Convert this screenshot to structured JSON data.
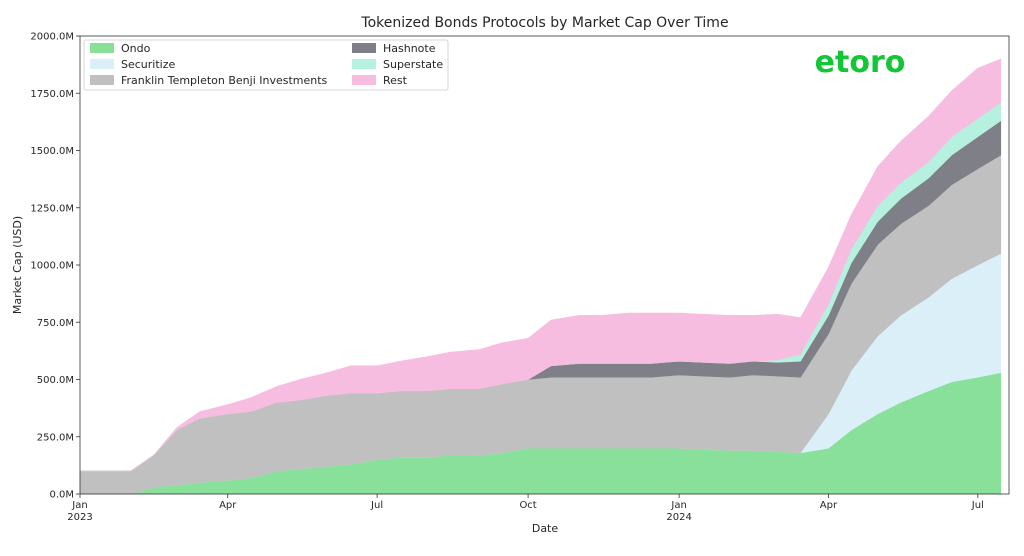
{
  "brand": {
    "logo_text": "etoro",
    "color": "#13c636"
  },
  "chart_data": {
    "type": "area",
    "stacked": true,
    "title": "Tokenized Bonds Protocols by Market Cap Over Time",
    "xlabel": "Date",
    "ylabel": "Market Cap (USD)",
    "ylim": [
      0,
      2000
    ],
    "yticks": [
      0,
      250,
      500,
      750,
      1000,
      1250,
      1500,
      1750,
      2000
    ],
    "ytick_labels": [
      "0.0M",
      "250.0M",
      "500.0M",
      "750.0M",
      "1000.0M",
      "1250.0M",
      "1500.0M",
      "1750.0M",
      "2000.0M"
    ],
    "xlim": [
      "2023-01-01",
      "2024-07-20"
    ],
    "xticks": [
      {
        "date": "2023-01-01",
        "label": "Jan",
        "sub": "2023"
      },
      {
        "date": "2023-04-01",
        "label": "Apr",
        "sub": ""
      },
      {
        "date": "2023-07-01",
        "label": "Jul",
        "sub": ""
      },
      {
        "date": "2023-10-01",
        "label": "Oct",
        "sub": ""
      },
      {
        "date": "2024-01-01",
        "label": "Jan",
        "sub": "2024"
      },
      {
        "date": "2024-04-01",
        "label": "Apr",
        "sub": ""
      },
      {
        "date": "2024-07-01",
        "label": "Jul",
        "sub": ""
      }
    ],
    "grid": false,
    "legend_position": "top-left",
    "x": [
      "2023-01-01",
      "2023-01-15",
      "2023-02-01",
      "2023-02-15",
      "2023-03-01",
      "2023-03-15",
      "2023-04-01",
      "2023-04-15",
      "2023-05-01",
      "2023-05-15",
      "2023-06-01",
      "2023-06-15",
      "2023-07-01",
      "2023-07-15",
      "2023-08-01",
      "2023-08-15",
      "2023-09-01",
      "2023-09-15",
      "2023-10-01",
      "2023-10-15",
      "2023-11-01",
      "2023-11-15",
      "2023-12-01",
      "2023-12-15",
      "2024-01-01",
      "2024-01-15",
      "2024-02-01",
      "2024-02-15",
      "2024-03-01",
      "2024-03-15",
      "2024-04-01",
      "2024-04-15",
      "2024-05-01",
      "2024-05-15",
      "2024-06-01",
      "2024-06-15",
      "2024-07-01",
      "2024-07-15"
    ],
    "series": [
      {
        "name": "Ondo",
        "color": "#88e09a",
        "values": [
          0,
          0,
          0,
          30,
          40,
          50,
          60,
          70,
          100,
          110,
          120,
          130,
          150,
          160,
          160,
          170,
          170,
          180,
          200,
          200,
          200,
          200,
          200,
          200,
          200,
          195,
          190,
          190,
          185,
          180,
          200,
          280,
          350,
          400,
          450,
          490,
          510,
          530
        ]
      },
      {
        "name": "Securitize",
        "color": "#dbeff9",
        "values": [
          0,
          0,
          0,
          0,
          0,
          0,
          0,
          0,
          0,
          0,
          0,
          0,
          0,
          0,
          0,
          0,
          0,
          0,
          0,
          0,
          0,
          0,
          0,
          0,
          0,
          0,
          0,
          0,
          0,
          0,
          150,
          260,
          340,
          380,
          410,
          450,
          490,
          520
        ]
      },
      {
        "name": "Franklin Templeton Benji Investments",
        "color": "#c0c0c0",
        "values": [
          100,
          100,
          100,
          140,
          240,
          280,
          290,
          290,
          300,
          300,
          310,
          310,
          290,
          290,
          290,
          290,
          290,
          300,
          300,
          310,
          310,
          310,
          310,
          310,
          320,
          320,
          320,
          330,
          330,
          330,
          350,
          380,
          400,
          400,
          400,
          410,
          420,
          430
        ]
      },
      {
        "name": "Hashnote",
        "color": "#7f7f87",
        "values": [
          0,
          0,
          0,
          0,
          0,
          0,
          0,
          0,
          0,
          0,
          0,
          0,
          0,
          0,
          0,
          0,
          0,
          0,
          0,
          50,
          60,
          60,
          60,
          60,
          60,
          60,
          60,
          60,
          60,
          70,
          80,
          90,
          100,
          110,
          120,
          130,
          140,
          150
        ]
      },
      {
        "name": "Superstate",
        "color": "#b5f1de",
        "values": [
          0,
          0,
          0,
          0,
          0,
          0,
          0,
          0,
          0,
          0,
          0,
          0,
          0,
          0,
          0,
          0,
          0,
          0,
          0,
          0,
          0,
          0,
          0,
          0,
          0,
          0,
          0,
          0,
          10,
          30,
          50,
          60,
          70,
          70,
          70,
          80,
          80,
          80
        ]
      },
      {
        "name": "Rest",
        "color": "#f6bde0",
        "values": [
          0,
          0,
          0,
          0,
          10,
          30,
          40,
          60,
          70,
          90,
          100,
          120,
          120,
          130,
          150,
          160,
          170,
          180,
          180,
          200,
          210,
          210,
          220,
          220,
          210,
          210,
          210,
          200,
          200,
          160,
          160,
          150,
          170,
          180,
          200,
          200,
          220,
          190
        ]
      }
    ]
  }
}
